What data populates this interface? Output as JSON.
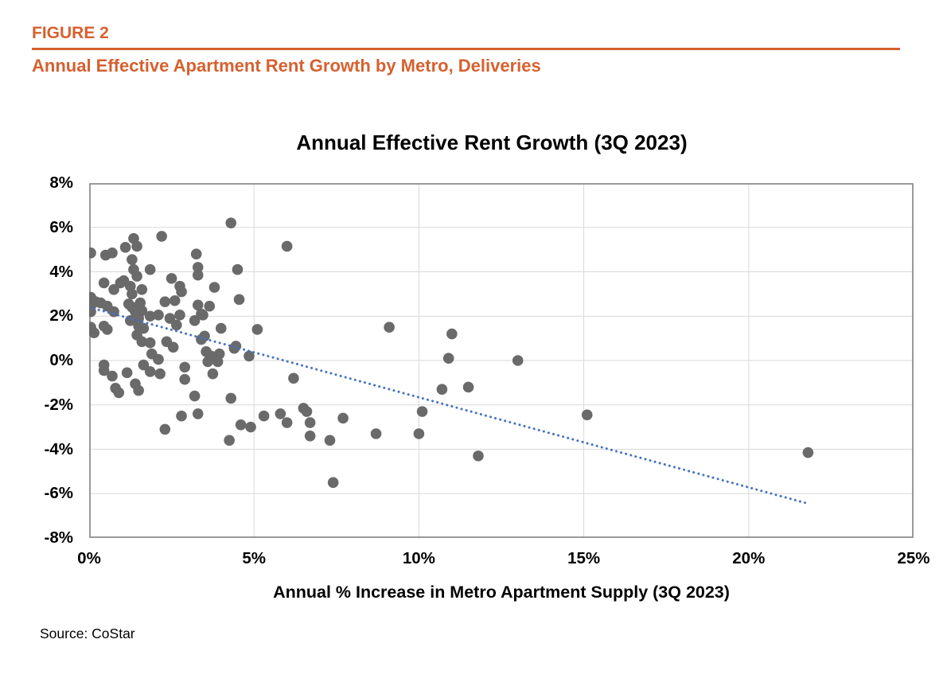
{
  "header": {
    "figure_label": "FIGURE 2",
    "subtitle": "Annual Effective Apartment Rent Growth by Metro, Deliveries",
    "accent_color": "#d7602f"
  },
  "source": "Source: CoStar",
  "chart_data": {
    "type": "scatter",
    "title": "Annual Effective Rent Growth (3Q 2023)",
    "xlabel": "Annual % Increase in Metro Apartment Supply (3Q 2023)",
    "ylabel": "",
    "xlim": [
      0,
      25
    ],
    "ylim": [
      -8,
      8
    ],
    "grid": true,
    "legend_position": "none",
    "x_ticks": [
      {
        "value": 0,
        "label": "0%"
      },
      {
        "value": 5,
        "label": "5%"
      },
      {
        "value": 10,
        "label": "10%"
      },
      {
        "value": 15,
        "label": "15%"
      },
      {
        "value": 20,
        "label": "20%"
      },
      {
        "value": 25,
        "label": "25%"
      }
    ],
    "y_ticks": [
      {
        "value": 8,
        "label": "8%"
      },
      {
        "value": 6,
        "label": "6%"
      },
      {
        "value": 4,
        "label": "4%"
      },
      {
        "value": 2,
        "label": "2%"
      },
      {
        "value": 0,
        "label": "0%"
      },
      {
        "value": -2,
        "label": "-2%"
      },
      {
        "value": -4,
        "label": "-4%"
      },
      {
        "value": -6,
        "label": "-6%"
      },
      {
        "value": -8,
        "label": "-8%"
      }
    ],
    "grid_color": "#d9d9d9",
    "border_color": "#808080",
    "point_color": "#6a6a6a",
    "point_radius": 6.8,
    "trendline": {
      "style": "dotted",
      "color": "#4472c4",
      "x1": 0,
      "y1": 2.4,
      "x2": 21.8,
      "y2": -6.45
    },
    "points": [
      [
        0.05,
        4.85
      ],
      [
        0.05,
        2.85
      ],
      [
        0.05,
        2.45
      ],
      [
        0.05,
        2.2
      ],
      [
        0.05,
        1.5
      ],
      [
        0.15,
        1.25
      ],
      [
        0.2,
        2.65
      ],
      [
        0.35,
        2.6
      ],
      [
        0.45,
        3.5
      ],
      [
        0.45,
        1.55
      ],
      [
        0.45,
        -0.2
      ],
      [
        0.45,
        -0.45
      ],
      [
        0.5,
        4.75
      ],
      [
        0.55,
        2.45
      ],
      [
        0.55,
        1.4
      ],
      [
        0.7,
        4.85
      ],
      [
        0.7,
        -0.7
      ],
      [
        0.75,
        3.2
      ],
      [
        0.75,
        2.2
      ],
      [
        0.8,
        -1.25
      ],
      [
        0.9,
        -1.45
      ],
      [
        0.95,
        3.5
      ],
      [
        1.05,
        3.6
      ],
      [
        1.1,
        5.1
      ],
      [
        1.15,
        -0.55
      ],
      [
        1.2,
        2.55
      ],
      [
        1.25,
        3.35
      ],
      [
        1.25,
        1.8
      ],
      [
        1.3,
        4.55
      ],
      [
        1.3,
        3.0
      ],
      [
        1.3,
        2.4
      ],
      [
        1.35,
        5.5
      ],
      [
        1.35,
        4.1
      ],
      [
        1.4,
        2.2
      ],
      [
        1.4,
        -1.05
      ],
      [
        1.45,
        5.15
      ],
      [
        1.45,
        3.8
      ],
      [
        1.45,
        1.15
      ],
      [
        1.5,
        1.9
      ],
      [
        1.5,
        1.55
      ],
      [
        1.5,
        -1.35
      ],
      [
        1.55,
        2.6
      ],
      [
        1.6,
        3.2
      ],
      [
        1.6,
        2.25
      ],
      [
        1.6,
        0.85
      ],
      [
        1.65,
        1.45
      ],
      [
        1.65,
        -0.2
      ],
      [
        1.85,
        4.1
      ],
      [
        1.85,
        2.0
      ],
      [
        1.85,
        0.8
      ],
      [
        1.85,
        -0.5
      ],
      [
        1.9,
        0.3
      ],
      [
        2.1,
        2.05
      ],
      [
        2.1,
        0.05
      ],
      [
        2.15,
        -0.6
      ],
      [
        2.2,
        5.6
      ],
      [
        2.3,
        2.65
      ],
      [
        2.3,
        -3.1
      ],
      [
        2.35,
        0.85
      ],
      [
        2.45,
        1.9
      ],
      [
        2.5,
        3.7
      ],
      [
        2.55,
        0.6
      ],
      [
        2.6,
        2.7
      ],
      [
        2.65,
        1.6
      ],
      [
        2.75,
        3.35
      ],
      [
        2.75,
        2.05
      ],
      [
        2.8,
        3.1
      ],
      [
        2.8,
        -2.5
      ],
      [
        2.9,
        -0.3
      ],
      [
        2.9,
        -0.85
      ],
      [
        3.2,
        1.8
      ],
      [
        3.2,
        -1.6
      ],
      [
        3.25,
        4.8
      ],
      [
        3.3,
        4.2
      ],
      [
        3.3,
        3.85
      ],
      [
        3.3,
        2.5
      ],
      [
        3.3,
        -2.4
      ],
      [
        3.4,
        2.1
      ],
      [
        3.4,
        0.95
      ],
      [
        3.45,
        2.05
      ],
      [
        3.5,
        1.1
      ],
      [
        3.55,
        0.4
      ],
      [
        3.6,
        -0.05
      ],
      [
        3.65,
        2.45
      ],
      [
        3.7,
        0.2
      ],
      [
        3.75,
        -0.6
      ],
      [
        3.8,
        3.3
      ],
      [
        3.9,
        -0.05
      ],
      [
        3.95,
        0.3
      ],
      [
        4.0,
        1.45
      ],
      [
        4.25,
        -3.6
      ],
      [
        4.3,
        6.2
      ],
      [
        4.3,
        -1.7
      ],
      [
        4.4,
        0.55
      ],
      [
        4.45,
        0.65
      ],
      [
        4.5,
        4.1
      ],
      [
        4.55,
        2.75
      ],
      [
        4.6,
        -2.9
      ],
      [
        4.85,
        0.2
      ],
      [
        4.9,
        -3.0
      ],
      [
        5.1,
        1.4
      ],
      [
        5.3,
        -2.5
      ],
      [
        5.8,
        -2.4
      ],
      [
        6.0,
        5.15
      ],
      [
        6.0,
        -2.8
      ],
      [
        6.2,
        -0.8
      ],
      [
        6.5,
        -2.15
      ],
      [
        6.6,
        -2.3
      ],
      [
        6.7,
        -2.8
      ],
      [
        6.7,
        -3.4
      ],
      [
        7.3,
        -3.6
      ],
      [
        7.4,
        -5.5
      ],
      [
        7.7,
        -2.6
      ],
      [
        8.7,
        -3.3
      ],
      [
        9.1,
        1.5
      ],
      [
        10.0,
        -3.3
      ],
      [
        10.1,
        -2.3
      ],
      [
        10.7,
        -1.3
      ],
      [
        10.9,
        0.1
      ],
      [
        11.0,
        1.2
      ],
      [
        11.5,
        -1.2
      ],
      [
        11.8,
        -4.3
      ],
      [
        13.0,
        0.0
      ],
      [
        15.1,
        -2.45
      ],
      [
        21.8,
        -4.15
      ]
    ]
  }
}
